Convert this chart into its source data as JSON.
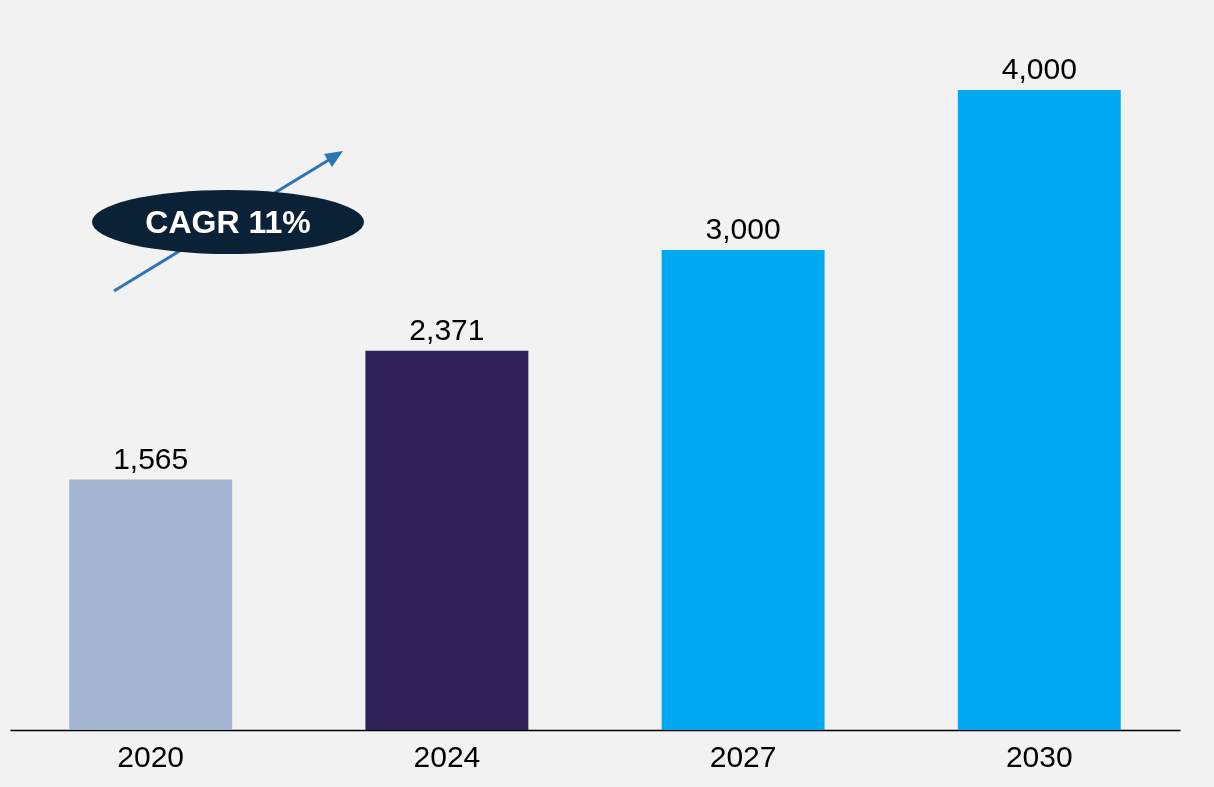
{
  "chart_data": {
    "type": "bar",
    "categories": [
      "2020",
      "2024",
      "2027",
      "2030"
    ],
    "values": [
      1565,
      2371,
      3000,
      4000
    ],
    "colors": [
      "#a2b4d0",
      "#2e1f57",
      "#00a8f0",
      "#00a8f0"
    ],
    "value_labels": [
      "1,565",
      "2,371",
      "3,000",
      "4,000"
    ],
    "annotations": [
      "CAGR 11%"
    ]
  }
}
